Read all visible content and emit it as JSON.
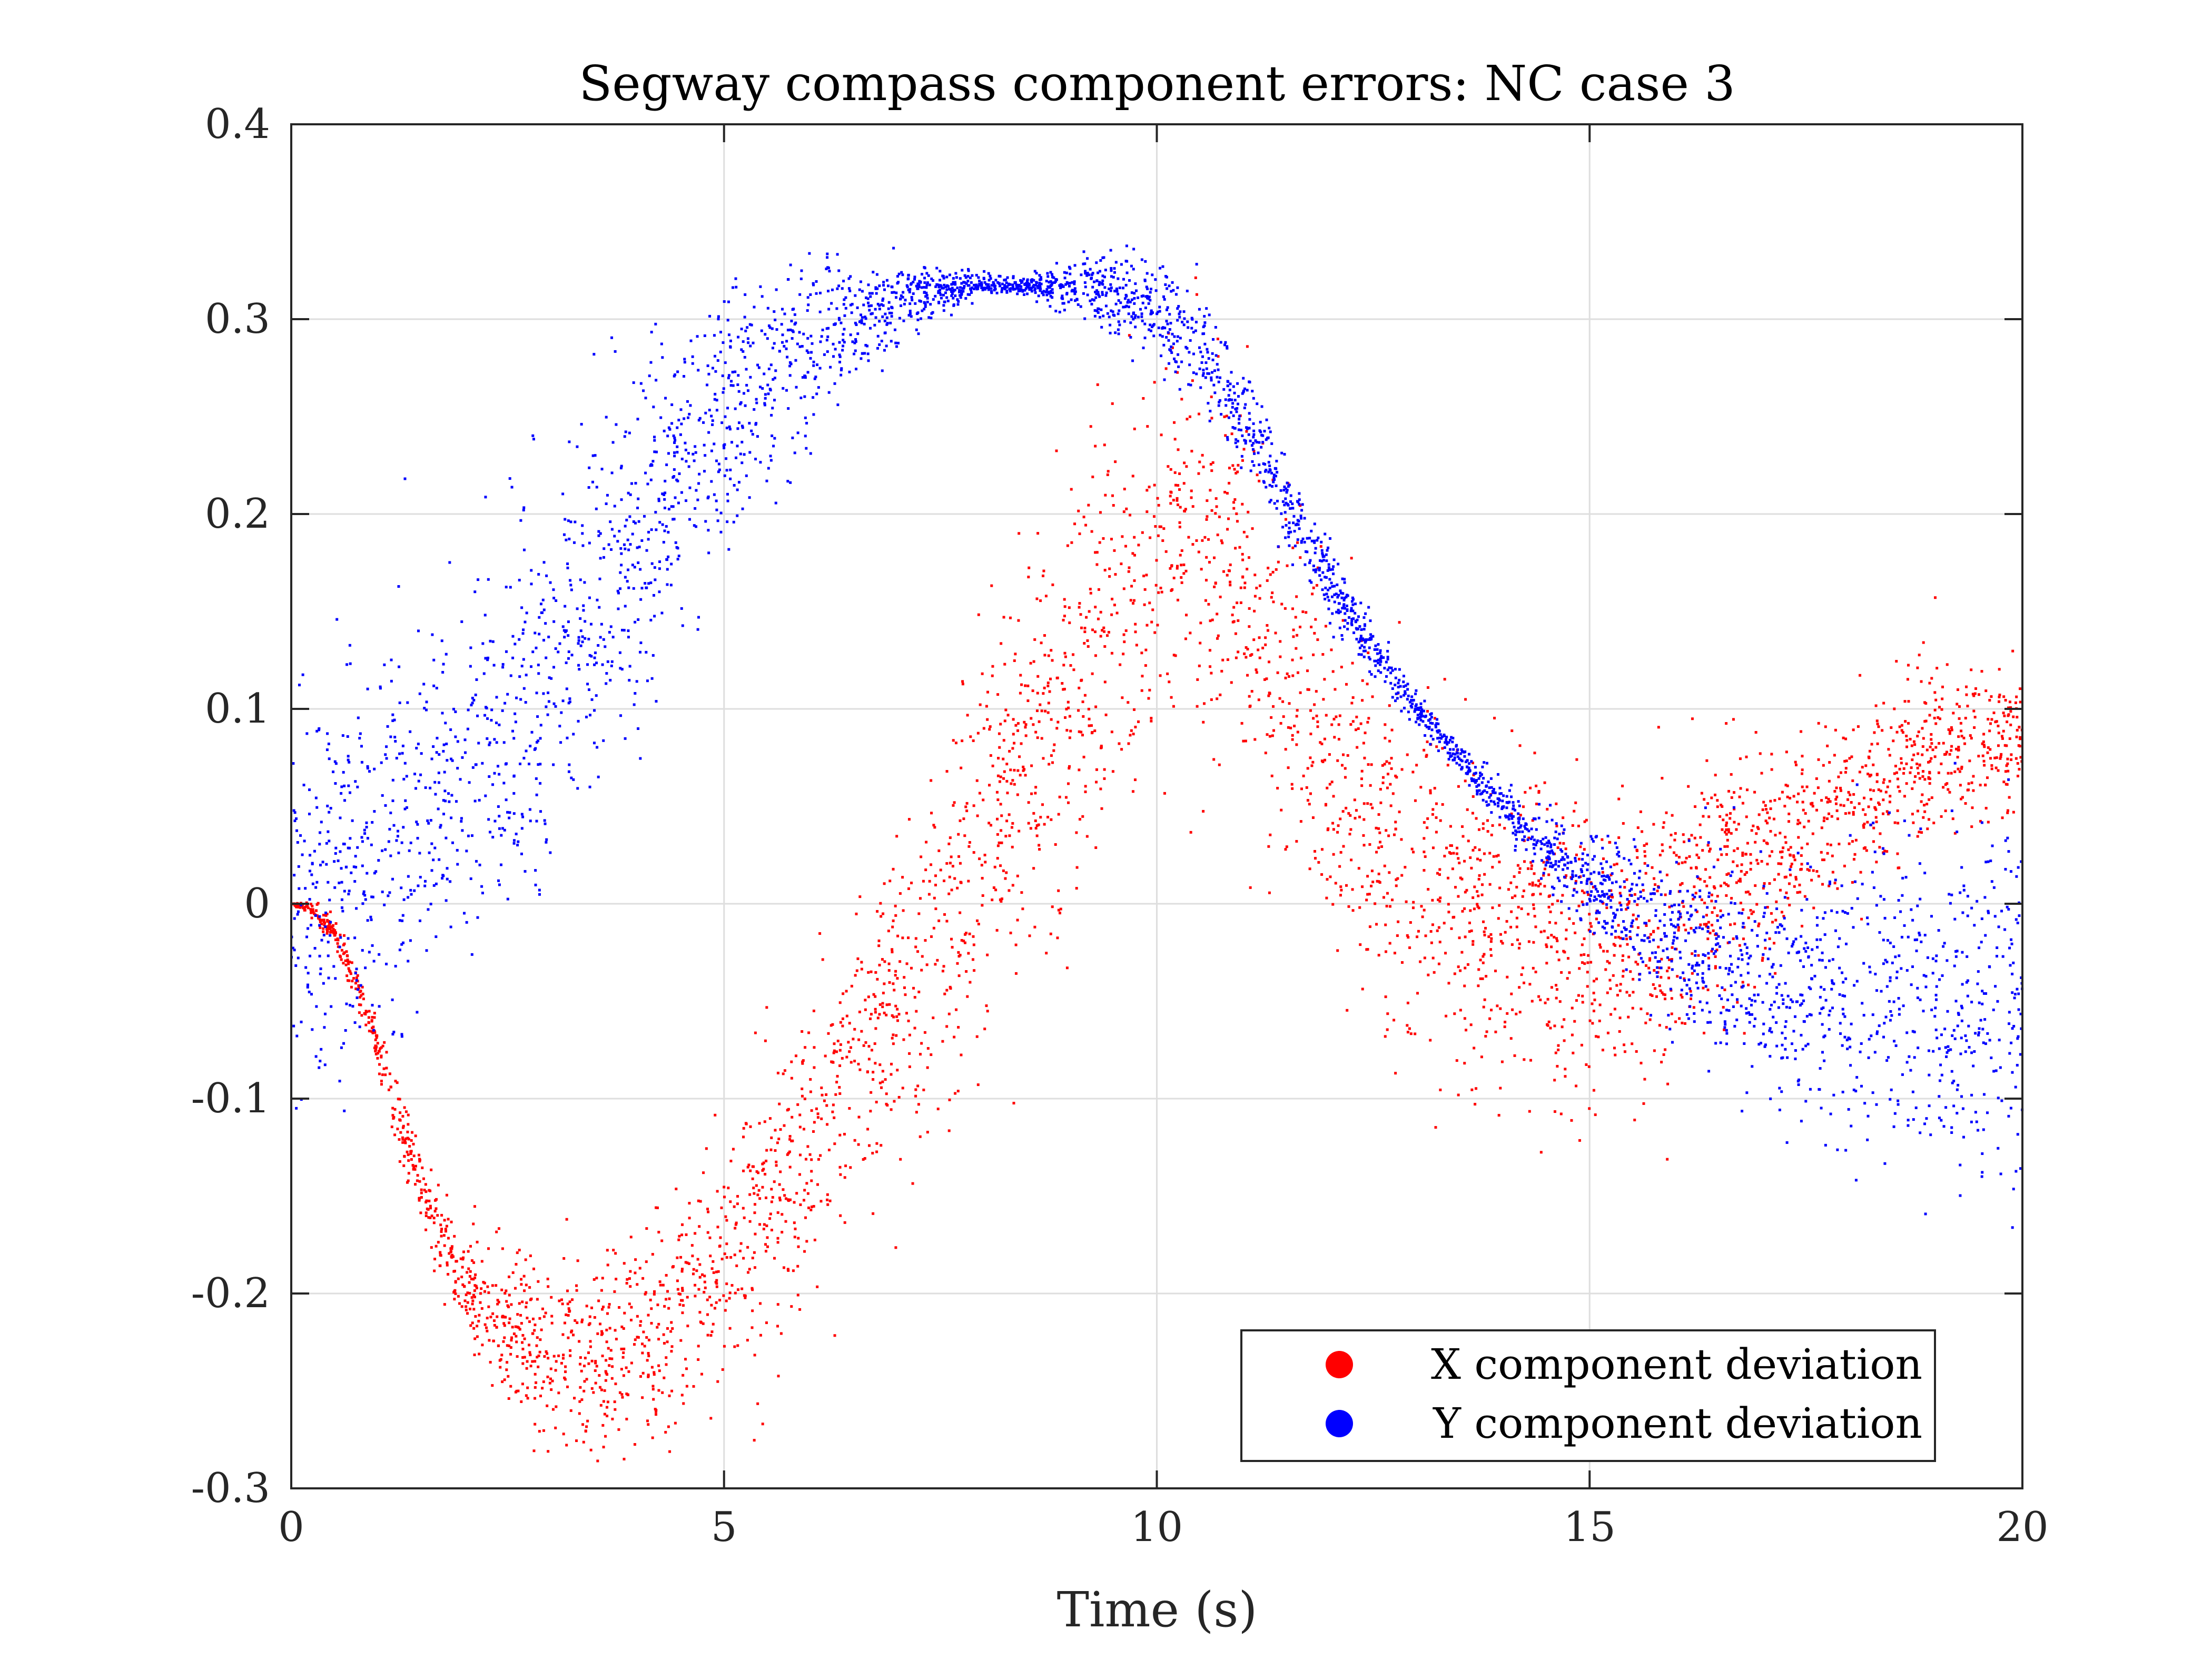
{
  "chart_data": {
    "type": "scatter",
    "title": "Segway compass component errors: NC case 3",
    "xlabel": "Time (s)",
    "ylabel": "",
    "xlim": [
      0,
      20
    ],
    "ylim": [
      -0.3,
      0.4
    ],
    "xticks": [
      0,
      5,
      10,
      15,
      20
    ],
    "xtick_labels": [
      "0",
      "5",
      "10",
      "15",
      "20"
    ],
    "yticks": [
      -0.3,
      -0.2,
      -0.1,
      0,
      0.1,
      0.2,
      0.3,
      0.4
    ],
    "ytick_labels": [
      "-0.3",
      "-0.2",
      "-0.1",
      "0",
      "0.1",
      "0.2",
      "0.3",
      "0.4"
    ],
    "grid": true,
    "legend_position": "bottom-right",
    "series": [
      {
        "name": "X component deviation",
        "color": "#ff0000",
        "x": [
          0,
          0.25,
          0.5,
          0.75,
          1.0,
          1.25,
          1.5,
          1.75,
          2.0,
          2.5,
          3.0,
          3.5,
          4.0,
          4.5,
          5.0,
          5.5,
          6.0,
          6.5,
          7.0,
          7.5,
          8.0,
          8.5,
          9.0,
          9.5,
          10.0,
          10.5,
          11.0,
          11.5,
          12.0,
          12.5,
          13.0,
          13.5,
          14.0,
          14.5,
          15.0,
          15.5,
          16.0,
          16.5,
          17.0,
          17.5,
          18.0,
          18.5,
          19.0,
          19.5,
          20.0
        ],
        "y": [
          0,
          -0.003,
          -0.015,
          -0.04,
          -0.075,
          -0.11,
          -0.145,
          -0.175,
          -0.195,
          -0.22,
          -0.232,
          -0.235,
          -0.225,
          -0.205,
          -0.18,
          -0.15,
          -0.115,
          -0.08,
          -0.045,
          -0.01,
          0.03,
          0.07,
          0.11,
          0.15,
          0.18,
          0.19,
          0.165,
          0.12,
          0.07,
          0.04,
          0.015,
          0.0,
          -0.01,
          -0.02,
          -0.025,
          -0.02,
          -0.005,
          0.01,
          0.025,
          0.04,
          0.055,
          0.065,
          0.075,
          0.085,
          0.09
        ],
        "spread": [
          0.0,
          0.002,
          0.003,
          0.005,
          0.006,
          0.008,
          0.01,
          0.012,
          0.015,
          0.02,
          0.025,
          0.028,
          0.03,
          0.032,
          0.034,
          0.036,
          0.038,
          0.04,
          0.042,
          0.045,
          0.048,
          0.05,
          0.05,
          0.05,
          0.05,
          0.048,
          0.046,
          0.044,
          0.042,
          0.042,
          0.042,
          0.042,
          0.04,
          0.04,
          0.038,
          0.036,
          0.034,
          0.032,
          0.03,
          0.028,
          0.026,
          0.024,
          0.022,
          0.02,
          0.018
        ]
      },
      {
        "name": "Y component deviation",
        "color": "#0000ff",
        "x": [
          0,
          0.5,
          1.0,
          1.5,
          2.0,
          2.5,
          3.0,
          3.5,
          4.0,
          4.5,
          5.0,
          5.5,
          6.0,
          6.5,
          7.0,
          7.5,
          8.0,
          8.5,
          9.0,
          9.5,
          10.0,
          10.5,
          11.0,
          11.5,
          12.0,
          12.5,
          13.0,
          13.5,
          14.0,
          14.5,
          15.0,
          15.5,
          16.0,
          16.5,
          17.0,
          17.5,
          18.0,
          18.5,
          19.0,
          19.5,
          20.0
        ],
        "y": [
          0,
          0.01,
          0.025,
          0.045,
          0.065,
          0.09,
          0.12,
          0.15,
          0.185,
          0.215,
          0.245,
          0.27,
          0.29,
          0.302,
          0.31,
          0.315,
          0.317,
          0.317,
          0.317,
          0.315,
          0.305,
          0.285,
          0.25,
          0.205,
          0.165,
          0.13,
          0.1,
          0.075,
          0.05,
          0.03,
          0.01,
          -0.005,
          -0.02,
          -0.032,
          -0.04,
          -0.045,
          -0.048,
          -0.05,
          -0.052,
          -0.054,
          -0.055
        ],
        "spread": [
          0.05,
          0.05,
          0.05,
          0.05,
          0.05,
          0.05,
          0.05,
          0.048,
          0.045,
          0.04,
          0.036,
          0.03,
          0.024,
          0.016,
          0.01,
          0.006,
          0.003,
          0.002,
          0.006,
          0.01,
          0.012,
          0.014,
          0.012,
          0.01,
          0.008,
          0.007,
          0.004,
          0.004,
          0.006,
          0.008,
          0.012,
          0.016,
          0.02,
          0.025,
          0.03,
          0.034,
          0.038,
          0.04,
          0.042,
          0.044,
          0.046
        ]
      }
    ]
  }
}
